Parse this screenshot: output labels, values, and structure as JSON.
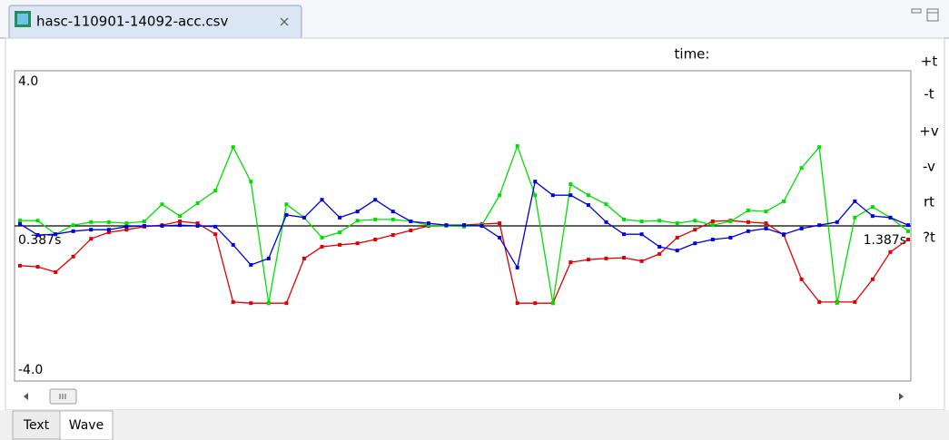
{
  "tab": {
    "title": "hasc-110901-14092-acc.csv"
  },
  "time_label": "time:",
  "side_buttons": [
    "+t",
    "-t",
    "+v",
    "-v",
    "rt",
    "?t"
  ],
  "bottom_tabs": [
    "Text",
    "Wave"
  ],
  "chart_data": {
    "type": "line",
    "x": [
      0.387,
      0.407,
      0.427,
      0.447,
      0.467,
      0.487,
      0.507,
      0.527,
      0.547,
      0.567,
      0.587,
      0.607,
      0.627,
      0.647,
      0.667,
      0.687,
      0.707,
      0.727,
      0.747,
      0.767,
      0.787,
      0.807,
      0.827,
      0.847,
      0.867,
      0.887,
      0.907,
      0.927,
      0.947,
      0.967,
      0.987,
      1.007,
      1.027,
      1.047,
      1.067,
      1.087,
      1.107,
      1.127,
      1.147,
      1.167,
      1.187,
      1.207,
      1.227,
      1.247,
      1.267,
      1.287,
      1.307,
      1.327,
      1.347,
      1.367,
      1.387
    ],
    "series": [
      {
        "color": "#e00000",
        "values": [
          -1.05,
          -1.08,
          -1.22,
          -0.81,
          -0.34,
          -0.17,
          -0.1,
          -0.02,
          0.02,
          0.12,
          0.07,
          -0.22,
          -2.01,
          -2.04,
          -2.04,
          -2.04,
          -0.86,
          -0.55,
          -0.5,
          -0.46,
          -0.36,
          -0.24,
          -0.12,
          0,
          0.02,
          0.02,
          0.05,
          0.07,
          -2.04,
          -2.04,
          -2.04,
          -0.96,
          -0.89,
          -0.86,
          -0.84,
          -0.93,
          -0.74,
          -0.31,
          -0.1,
          0.12,
          0.14,
          0.1,
          0.07,
          -0.24,
          -1.41,
          -2.01,
          -2.01,
          -2.01,
          -1.41,
          -0.69,
          -0.36
        ]
      },
      {
        "color": "#00e000",
        "values": [
          0.14,
          0.14,
          -0.22,
          0.02,
          0.1,
          0.1,
          0.07,
          0.12,
          0.57,
          0.26,
          0.6,
          0.93,
          2.08,
          1.17,
          -2.04,
          0.57,
          0.22,
          -0.31,
          -0.17,
          0.14,
          0.17,
          0.17,
          0.12,
          0.02,
          0,
          -0.02,
          0.02,
          0.81,
          2.11,
          0.81,
          -2.04,
          1.1,
          0.81,
          0.57,
          0.17,
          0.12,
          0.14,
          0.07,
          0.14,
          0.02,
          0.12,
          0.41,
          0.38,
          0.65,
          1.53,
          2.08,
          -2.04,
          0.22,
          0.5,
          0.22,
          -0.14
        ]
      },
      {
        "color": "#0000e0",
        "values": [
          0.05,
          -0.24,
          -0.22,
          -0.14,
          -0.1,
          -0.1,
          -0.02,
          0,
          0,
          0.02,
          0,
          -0.02,
          -0.5,
          -1.03,
          -0.86,
          0.29,
          0.22,
          0.69,
          0.22,
          0.38,
          0.69,
          0.38,
          0.12,
          0.07,
          0.02,
          0.02,
          0,
          -0.31,
          -1.1,
          1.17,
          0.81,
          0.81,
          0.55,
          0.1,
          -0.22,
          -0.22,
          -0.55,
          -0.65,
          -0.46,
          -0.36,
          -0.31,
          -0.14,
          -0.07,
          -0.22,
          -0.07,
          0.02,
          0.1,
          0.65,
          0.26,
          0.22,
          0.02
        ]
      }
    ],
    "xlim": [
      0.387,
      1.387
    ],
    "xticks": [
      {
        "value": 0.387,
        "label": "0.387s"
      },
      {
        "value": 1.387,
        "label": "1.387s"
      }
    ],
    "ylim": [
      -4,
      4
    ],
    "yticks": [
      {
        "value": 4,
        "label": "4.0"
      },
      {
        "value": -4,
        "label": "-4.0"
      }
    ],
    "markers": true
  }
}
